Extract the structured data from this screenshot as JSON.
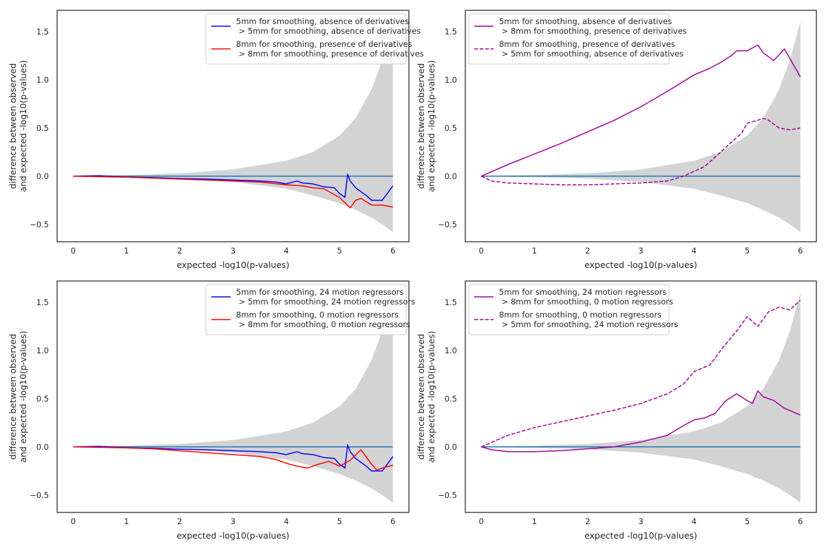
{
  "chart_data": [
    {
      "type": "line",
      "panel": "top-left",
      "xlabel": "expected -log10(p-values)",
      "ylabel": [
        "difference between observed",
        "and expected -log10(p-values)"
      ],
      "xlim": [
        -0.3,
        6.3
      ],
      "ylim": [
        -0.68,
        1.72
      ],
      "xticks": [
        0,
        1,
        2,
        3,
        4,
        5,
        6
      ],
      "yticks": [
        -0.5,
        0.0,
        0.5,
        1.0,
        1.5
      ],
      "ytick_labels": [
        "−0.5",
        "0.0",
        "0.5",
        "1.0",
        "1.5"
      ],
      "legend_position": "upper right",
      "band": {
        "x": [
          0,
          1,
          2,
          3,
          4,
          4.5,
          5,
          5.3,
          5.6,
          5.8,
          6
        ],
        "upper": [
          0.003,
          0.012,
          0.03,
          0.07,
          0.16,
          0.25,
          0.42,
          0.6,
          0.9,
          1.2,
          1.6
        ],
        "lower": [
          -0.003,
          -0.01,
          -0.025,
          -0.06,
          -0.13,
          -0.2,
          -0.28,
          -0.35,
          -0.43,
          -0.5,
          -0.58
        ]
      },
      "baseline": 0,
      "series": [
        {
          "name": "5mm for smoothing, absence of derivatives\n > 5mm for smoothing, absence of derivatives",
          "color": "#0000ff",
          "dash": "solid",
          "x": [
            0,
            0.5,
            1,
            1.5,
            2,
            2.5,
            3,
            3.5,
            3.8,
            4.0,
            4.2,
            4.3,
            4.5,
            4.7,
            4.9,
            5.0,
            5.1,
            5.15,
            5.2,
            5.3,
            5.4,
            5.5,
            5.6,
            5.8,
            6
          ],
          "y": [
            0,
            0.005,
            -0.01,
            -0.015,
            -0.025,
            -0.03,
            -0.04,
            -0.05,
            -0.06,
            -0.08,
            -0.05,
            -0.07,
            -0.08,
            -0.11,
            -0.12,
            -0.18,
            -0.22,
            0.02,
            -0.05,
            -0.12,
            -0.16,
            -0.2,
            -0.25,
            -0.25,
            -0.1
          ]
        },
        {
          "name": "8mm for smoothing, presence of derivatives\n > 8mm for smoothing, presence of derivatives",
          "color": "#ff0000",
          "dash": "solid",
          "x": [
            0,
            0.5,
            1,
            1.5,
            2,
            2.5,
            3,
            3.5,
            4.0,
            4.3,
            4.5,
            4.7,
            5.0,
            5.2,
            5.3,
            5.4,
            5.6,
            5.8,
            6
          ],
          "y": [
            0,
            -0.005,
            -0.01,
            -0.02,
            -0.03,
            -0.04,
            -0.05,
            -0.06,
            -0.09,
            -0.1,
            -0.12,
            -0.13,
            -0.22,
            -0.33,
            -0.25,
            -0.23,
            -0.3,
            -0.3,
            -0.32
          ]
        }
      ]
    },
    {
      "type": "line",
      "panel": "top-right",
      "xlabel": "expected -log10(p-values)",
      "ylabel": [
        "difference between observed",
        "and expected -log10(p-values)"
      ],
      "xlim": [
        -0.3,
        6.3
      ],
      "ylim": [
        -0.68,
        1.72
      ],
      "xticks": [
        0,
        1,
        2,
        3,
        4,
        5,
        6
      ],
      "yticks": [
        -0.5,
        0.0,
        0.5,
        1.0,
        1.5
      ],
      "ytick_labels": [
        "−0.5",
        "0.0",
        "0.5",
        "1.0",
        "1.5"
      ],
      "legend_position": "upper left",
      "band": {
        "x": [
          0,
          1,
          2,
          3,
          4,
          4.5,
          5,
          5.3,
          5.6,
          5.8,
          6
        ],
        "upper": [
          0.003,
          0.012,
          0.03,
          0.07,
          0.16,
          0.25,
          0.42,
          0.6,
          0.9,
          1.2,
          1.6
        ],
        "lower": [
          -0.003,
          -0.01,
          -0.025,
          -0.06,
          -0.13,
          -0.2,
          -0.28,
          -0.35,
          -0.43,
          -0.5,
          -0.58
        ]
      },
      "baseline": 0,
      "series": [
        {
          "name": "5mm for smoothing, absence of derivatives\n > 8mm for smoothing, presence of derivatives",
          "color": "#a000a0",
          "dash": "solid",
          "x": [
            0,
            0.5,
            1,
            1.5,
            2,
            2.5,
            3,
            3.5,
            4.0,
            4.3,
            4.5,
            4.7,
            4.8,
            5.0,
            5.2,
            5.3,
            5.5,
            5.7,
            6
          ],
          "y": [
            0,
            0.12,
            0.23,
            0.34,
            0.46,
            0.58,
            0.72,
            0.88,
            1.05,
            1.12,
            1.18,
            1.25,
            1.3,
            1.3,
            1.36,
            1.28,
            1.2,
            1.32,
            1.03
          ]
        },
        {
          "name": "8mm for smoothing, presence of derivatives\n > 5mm for smoothing, absence of derivatives",
          "color": "#a000a0",
          "dash": "dashed",
          "x": [
            0,
            0.2,
            0.5,
            1,
            1.5,
            2,
            2.5,
            3,
            3.5,
            3.8,
            4.0,
            4.2,
            4.4,
            4.6,
            4.8,
            4.9,
            5.0,
            5.2,
            5.3,
            5.4,
            5.6,
            5.8,
            6
          ],
          "y": [
            0,
            -0.05,
            -0.07,
            -0.08,
            -0.09,
            -0.09,
            -0.08,
            -0.07,
            -0.05,
            0.0,
            0.05,
            0.1,
            0.2,
            0.3,
            0.4,
            0.45,
            0.55,
            0.58,
            0.6,
            0.58,
            0.5,
            0.48,
            0.5
          ]
        }
      ]
    },
    {
      "type": "line",
      "panel": "bottom-left",
      "xlabel": "expected -log10(p-values)",
      "ylabel": [
        "difference between observed",
        "and expected -log10(p-values)"
      ],
      "xlim": [
        -0.3,
        6.3
      ],
      "ylim": [
        -0.68,
        1.72
      ],
      "xticks": [
        0,
        1,
        2,
        3,
        4,
        5,
        6
      ],
      "yticks": [
        -0.5,
        0.0,
        0.5,
        1.0,
        1.5
      ],
      "ytick_labels": [
        "−0.5",
        "0.0",
        "0.5",
        "1.0",
        "1.5"
      ],
      "legend_position": "upper right",
      "band": {
        "x": [
          0,
          1,
          2,
          3,
          4,
          4.5,
          5,
          5.3,
          5.6,
          5.8,
          6
        ],
        "upper": [
          0.003,
          0.012,
          0.03,
          0.07,
          0.16,
          0.25,
          0.42,
          0.6,
          0.9,
          1.2,
          1.6
        ],
        "lower": [
          -0.003,
          -0.01,
          -0.025,
          -0.06,
          -0.13,
          -0.2,
          -0.28,
          -0.35,
          -0.43,
          -0.5,
          -0.58
        ]
      },
      "baseline": 0,
      "series": [
        {
          "name": "5mm for smoothing, 24 motion regressors\n > 5mm for smoothing, 24 motion regressors",
          "color": "#0000ff",
          "dash": "solid",
          "x": [
            0,
            0.5,
            1,
            1.5,
            2,
            2.5,
            3,
            3.5,
            3.8,
            4.0,
            4.2,
            4.3,
            4.5,
            4.7,
            4.9,
            5.0,
            5.1,
            5.15,
            5.2,
            5.3,
            5.4,
            5.5,
            5.6,
            5.8,
            6
          ],
          "y": [
            0,
            0.005,
            -0.01,
            -0.015,
            -0.025,
            -0.03,
            -0.04,
            -0.05,
            -0.06,
            -0.08,
            -0.05,
            -0.07,
            -0.08,
            -0.11,
            -0.12,
            -0.18,
            -0.22,
            0.02,
            -0.05,
            -0.12,
            -0.16,
            -0.2,
            -0.25,
            -0.25,
            -0.1
          ]
        },
        {
          "name": "8mm for smoothing, 0 motion regressors\n > 8mm for smoothing, 0 motion regressors",
          "color": "#ff0000",
          "dash": "solid",
          "x": [
            0,
            0.5,
            1,
            1.5,
            2,
            2.5,
            3,
            3.5,
            3.8,
            4.0,
            4.2,
            4.4,
            4.6,
            4.8,
            5.0,
            5.2,
            5.4,
            5.6,
            5.7,
            5.8,
            6
          ],
          "y": [
            0,
            -0.005,
            -0.01,
            -0.02,
            -0.04,
            -0.06,
            -0.08,
            -0.1,
            -0.13,
            -0.17,
            -0.2,
            -0.22,
            -0.18,
            -0.15,
            -0.2,
            -0.14,
            -0.03,
            -0.18,
            -0.24,
            -0.22,
            -0.19
          ]
        }
      ]
    },
    {
      "type": "line",
      "panel": "bottom-right",
      "xlabel": "expected -log10(p-values)",
      "ylabel": [
        "difference between observed",
        "and expected -log10(p-values)"
      ],
      "xlim": [
        -0.3,
        6.3
      ],
      "ylim": [
        -0.68,
        1.72
      ],
      "xticks": [
        0,
        1,
        2,
        3,
        4,
        5,
        6
      ],
      "yticks": [
        -0.5,
        0.0,
        0.5,
        1.0,
        1.5
      ],
      "ytick_labels": [
        "−0.5",
        "0.0",
        "0.5",
        "1.0",
        "1.5"
      ],
      "legend_position": "upper left",
      "band": {
        "x": [
          0,
          1,
          2,
          3,
          4,
          4.5,
          5,
          5.3,
          5.6,
          5.8,
          6
        ],
        "upper": [
          0.003,
          0.012,
          0.03,
          0.07,
          0.16,
          0.25,
          0.42,
          0.6,
          0.9,
          1.2,
          1.6
        ],
        "lower": [
          -0.003,
          -0.01,
          -0.025,
          -0.06,
          -0.13,
          -0.2,
          -0.28,
          -0.35,
          -0.43,
          -0.5,
          -0.58
        ]
      },
      "baseline": 0,
      "series": [
        {
          "name": "5mm for smoothing, 24 motion regressors\n > 8mm for smoothing, 0 motion regressors",
          "color": "#a000a0",
          "dash": "solid",
          "x": [
            0,
            0.2,
            0.5,
            1,
            1.5,
            2,
            2.5,
            3,
            3.5,
            3.8,
            4.0,
            4.2,
            4.4,
            4.6,
            4.8,
            5.0,
            5.1,
            5.2,
            5.3,
            5.5,
            5.7,
            6
          ],
          "y": [
            0,
            -0.03,
            -0.05,
            -0.05,
            -0.04,
            -0.02,
            0.0,
            0.05,
            0.12,
            0.22,
            0.28,
            0.3,
            0.35,
            0.48,
            0.55,
            0.48,
            0.45,
            0.58,
            0.52,
            0.48,
            0.4,
            0.33
          ]
        },
        {
          "name": "8mm for smoothing, 0 motion regressors\n > 5mm for smoothing, 24 motion regressors",
          "color": "#a000a0",
          "dash": "dashed",
          "x": [
            0,
            0.5,
            1,
            1.5,
            2,
            2.5,
            3,
            3.5,
            3.8,
            4.0,
            4.3,
            4.5,
            4.8,
            5.0,
            5.2,
            5.4,
            5.6,
            5.8,
            6
          ],
          "y": [
            0,
            0.12,
            0.2,
            0.26,
            0.32,
            0.38,
            0.45,
            0.55,
            0.65,
            0.78,
            0.85,
            1.0,
            1.2,
            1.35,
            1.25,
            1.4,
            1.45,
            1.42,
            1.52
          ]
        }
      ]
    }
  ]
}
